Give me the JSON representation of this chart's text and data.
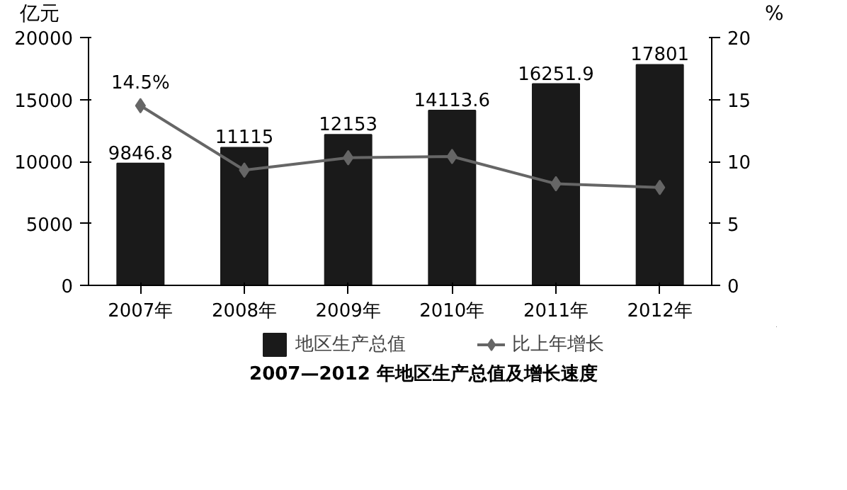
{
  "chart_data": {
    "type": "bar",
    "title": "2007—2012 年地区生产总值及增长速度",
    "ylabel": "亿元",
    "y2label": "%",
    "categories": [
      "2007年",
      "2008年",
      "2009年",
      "2010年",
      "2011年",
      "2012年"
    ],
    "series": [
      {
        "name": "地区生产总值",
        "color": "#1a1a1a",
        "values": [
          9846.8,
          11115,
          12153,
          14113.6,
          16251.9,
          17801
        ],
        "data_labels": true
      },
      {
        "name": "比上年增长",
        "type": "line",
        "axis": "y2",
        "color": "#666666",
        "marker": "diamond",
        "values": [
          14.5,
          9.3,
          10.3,
          10.4,
          8.2,
          7.9
        ],
        "value_labels": [
          "14.5%",
          null,
          null,
          null,
          null,
          null
        ]
      }
    ],
    "ylim": [
      0,
      20000
    ],
    "yticks": [
      0,
      5000,
      10000,
      15000,
      20000
    ],
    "y2lim": [
      0,
      20
    ],
    "y2ticks": [
      0,
      5,
      10,
      15,
      20
    ],
    "grid": false,
    "legend": "bottom"
  }
}
